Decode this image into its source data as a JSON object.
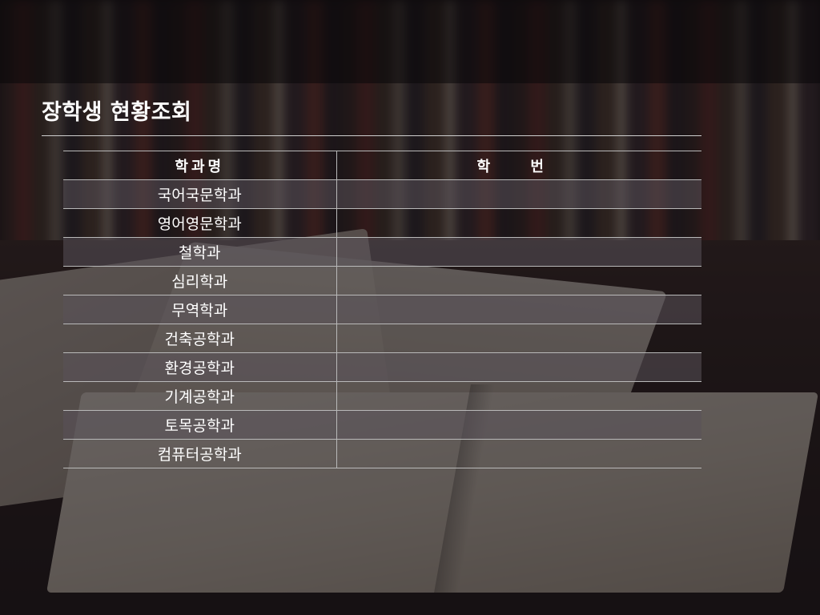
{
  "title": "장학생 현황조회",
  "table": {
    "headers": {
      "department": "학과명",
      "student_id": "학 번"
    },
    "rows": [
      {
        "department": "국어국문학과",
        "student_id": ""
      },
      {
        "department": "영어영문학과",
        "student_id": ""
      },
      {
        "department": "철학과",
        "student_id": ""
      },
      {
        "department": "심리학과",
        "student_id": ""
      },
      {
        "department": "무역학과",
        "student_id": ""
      },
      {
        "department": "건축공학과",
        "student_id": ""
      },
      {
        "department": "환경공학과",
        "student_id": ""
      },
      {
        "department": "기계공학과",
        "student_id": ""
      },
      {
        "department": "토목공학과",
        "student_id": ""
      },
      {
        "department": "컴퓨터공학과",
        "student_id": ""
      }
    ]
  }
}
